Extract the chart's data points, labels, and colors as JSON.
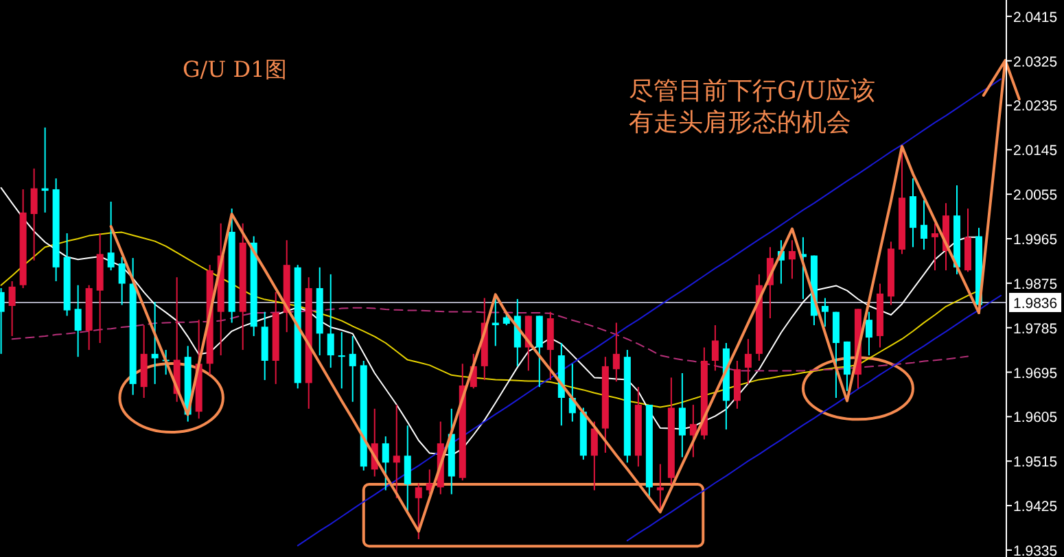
{
  "chart_data": {
    "type": "candlestick",
    "title": "G/U D1图",
    "annotations": [
      "尽管目前下行G/U应该",
      "有走头肩形态的机会"
    ],
    "categories": [
      null,
      null,
      null,
      null,
      null,
      null,
      null,
      null,
      null,
      null,
      null,
      null,
      null,
      null,
      null,
      null,
      null,
      null,
      null,
      null,
      null,
      null,
      null,
      null,
      null,
      null,
      null,
      null,
      null,
      null,
      null,
      null,
      null,
      null,
      null,
      null,
      null,
      null,
      null,
      null,
      null,
      null,
      null,
      null,
      null,
      null,
      null,
      null,
      null,
      null,
      null,
      null,
      null,
      null,
      null,
      null,
      null,
      null,
      null,
      null,
      null,
      null,
      null,
      null,
      null,
      null,
      null,
      null,
      null,
      null,
      null,
      null,
      null,
      null,
      null,
      null,
      null,
      null,
      null,
      null,
      null,
      null,
      null,
      null,
      null,
      null,
      null,
      null,
      null,
      null,
      null,
      null
    ],
    "ohlc": [
      [
        1.9857,
        1.9865,
        1.9732,
        1.9817
      ],
      [
        1.9829,
        1.9879,
        1.9768,
        1.9868
      ],
      [
        1.9871,
        2.0065,
        1.9865,
        2.0018
      ],
      [
        2.0015,
        2.0107,
        1.9921,
        2.0067
      ],
      [
        2.0067,
        2.019,
        2.0018,
        2.0062
      ],
      [
        2.0065,
        2.0087,
        1.9879,
        1.9907
      ],
      [
        1.9928,
        1.9976,
        1.9809,
        1.982
      ],
      [
        1.9823,
        1.9871,
        1.9726,
        1.9779
      ],
      [
        1.9779,
        1.9871,
        1.974,
        1.9865
      ],
      [
        1.986,
        1.9976,
        1.9754,
        1.9934
      ],
      [
        1.9937,
        2.004,
        1.9901,
        1.9907
      ],
      [
        1.9915,
        1.9928,
        1.9831,
        1.9874
      ],
      [
        1.9874,
        1.9926,
        1.9649,
        1.9671
      ],
      [
        1.9665,
        1.979,
        1.9643,
        1.9732
      ],
      [
        1.9732,
        1.9837,
        1.9671,
        1.9723
      ],
      [
        1.972,
        1.974,
        1.969,
        1.9718
      ],
      [
        1.9651,
        1.9887,
        1.9635,
        1.972
      ],
      [
        1.9726,
        1.9748,
        1.9595,
        1.9609
      ],
      [
        1.9615,
        1.9801,
        1.9601,
        1.9712
      ],
      [
        1.9712,
        1.9912,
        1.969,
        1.9901
      ],
      [
        1.9817,
        1.9996,
        1.9729,
        1.9931
      ],
      [
        1.9979,
        2.0026,
        1.9795,
        1.9817
      ],
      [
        1.9817,
        1.9996,
        1.974,
        1.9957
      ],
      [
        1.9957,
        1.997,
        1.9768,
        1.9787
      ],
      [
        1.9787,
        1.9817,
        1.9679,
        1.9718
      ],
      [
        1.9718,
        1.9857,
        1.9671,
        1.9815
      ],
      [
        1.9815,
        1.9962,
        1.9776,
        1.9912
      ],
      [
        1.9907,
        1.9912,
        1.9662,
        1.9673
      ],
      [
        1.9673,
        1.9887,
        1.9621,
        1.9865
      ],
      [
        1.9865,
        1.9907,
        1.9729,
        1.9773
      ],
      [
        1.9773,
        1.9893,
        1.9704,
        1.9729
      ],
      [
        1.9729,
        1.9776,
        1.9662,
        1.9726
      ],
      [
        1.9732,
        1.9768,
        1.9635,
        1.9707
      ],
      [
        1.9709,
        1.9718,
        1.9496,
        1.9504
      ],
      [
        1.9498,
        1.9621,
        1.9484,
        1.9551
      ],
      [
        1.9551,
        1.9565,
        1.9456,
        1.9512
      ],
      [
        1.9512,
        1.9629,
        1.944,
        1.9526
      ],
      [
        1.9526,
        1.9587,
        1.9412,
        1.9468
      ],
      [
        1.944,
        1.947,
        1.9357,
        1.9462
      ],
      [
        1.9456,
        1.9498,
        1.9448,
        1.947
      ],
      [
        1.9462,
        1.9595,
        1.9448,
        1.9551
      ],
      [
        1.957,
        1.9621,
        1.9448,
        1.9484
      ],
      [
        1.9481,
        1.9712,
        1.9476,
        1.9668
      ],
      [
        1.9665,
        1.9732,
        1.9662,
        1.9707
      ],
      [
        1.9707,
        1.9845,
        1.9679,
        1.9795
      ],
      [
        1.9795,
        1.9845,
        1.9748,
        1.979
      ],
      [
        1.9806,
        1.9817,
        1.979,
        1.9793
      ],
      [
        1.9809,
        1.9843,
        1.9707,
        1.9745
      ],
      [
        1.9745,
        1.9809,
        1.9698,
        1.9809
      ],
      [
        1.9809,
        1.9809,
        1.9665,
        1.9745
      ],
      [
        1.974,
        1.9817,
        1.9679,
        1.9804
      ],
      [
        1.9729,
        1.9754,
        1.9587,
        1.9643
      ],
      [
        1.9643,
        1.9712,
        1.9595,
        1.9612
      ],
      [
        1.9615,
        1.9623,
        1.9518,
        1.9526
      ],
      [
        1.9526,
        1.9595,
        1.9456,
        1.9581
      ],
      [
        1.9581,
        1.9726,
        1.9532,
        1.9707
      ],
      [
        1.9701,
        1.9795,
        1.9676,
        1.9732
      ],
      [
        1.9726,
        1.974,
        1.9512,
        1.9526
      ],
      [
        1.9526,
        1.9665,
        1.9504,
        1.9629
      ],
      [
        1.9629,
        1.9629,
        1.944,
        1.9462
      ],
      [
        1.9456,
        1.9509,
        1.9412,
        1.9462
      ],
      [
        1.9481,
        1.9684,
        1.9468,
        1.9623
      ],
      [
        1.9623,
        1.9693,
        1.9523,
        1.9567
      ],
      [
        1.9567,
        1.9629,
        1.9523,
        1.959
      ],
      [
        1.9567,
        1.9745,
        1.9559,
        1.9718
      ],
      [
        1.9718,
        1.979,
        1.9698,
        1.9759
      ],
      [
        1.9743,
        1.9754,
        1.9579,
        1.9637
      ],
      [
        1.9637,
        1.9718,
        1.9621,
        1.9701
      ],
      [
        1.9704,
        1.9762,
        1.9671,
        1.9732
      ],
      [
        1.9732,
        1.9893,
        1.9718,
        1.9871
      ],
      [
        1.9871,
        1.9948,
        1.9804,
        1.9926
      ],
      [
        1.994,
        1.9962,
        1.9874,
        1.9921
      ],
      [
        1.9923,
        1.9962,
        1.9884,
        1.994
      ],
      [
        1.9934,
        1.9968,
        1.9843,
        1.9928
      ],
      [
        1.9931,
        1.9931,
        1.979,
        1.9809
      ],
      [
        1.9829,
        1.9845,
        1.9787,
        1.9817
      ],
      [
        1.9817,
        1.9817,
        1.9643,
        1.9754
      ],
      [
        1.9757,
        1.9757,
        1.9657,
        1.969
      ],
      [
        1.969,
        1.9823,
        1.9662,
        1.9823
      ],
      [
        1.9801,
        1.9817,
        1.9729,
        1.9765
      ],
      [
        1.9768,
        1.9874,
        1.9745,
        1.9854
      ],
      [
        1.9848,
        1.9959,
        1.9831,
        1.9945
      ],
      [
        1.9943,
        2.0143,
        1.9934,
        2.0048
      ],
      [
        2.0051,
        2.0087,
        1.9948,
        1.9987
      ],
      [
        1.9993,
        2.0043,
        1.9943,
        1.9965
      ],
      [
        1.9968,
        1.9996,
        1.9901,
        1.9976
      ],
      [
        1.994,
        2.0037,
        1.9901,
        2.0012
      ],
      [
        2.0012,
        2.0073,
        1.9893,
        1.9907
      ],
      [
        1.9901,
        2.0026,
        1.9898,
        1.9968
      ],
      [
        1.997,
        1.9987,
        1.9823,
        1.9831
      ],
      null,
      null
    ],
    "colors": [
      "#00ffff",
      "#e0143c",
      "#e0143c",
      "#e0143c",
      "#00ffff",
      "#00ffff",
      "#00ffff",
      "#00ffff",
      "#e0143c",
      "#e0143c",
      "#00ffff",
      "#00ffff",
      "#00ffff",
      "#e0143c",
      "#00ffff",
      "#00ffff",
      "#e0143c",
      "#00ffff",
      "#e0143c",
      "#e0143c",
      "#e0143c",
      "#00ffff",
      "#e0143c",
      "#00ffff",
      "#00ffff",
      "#e0143c",
      "#e0143c",
      "#00ffff",
      "#e0143c",
      "#00ffff",
      "#00ffff",
      "#00ffff",
      "#00ffff",
      "#00ffff",
      "#e0143c",
      "#00ffff",
      "#e0143c",
      "#00ffff",
      "#e0143c",
      "#e0143c",
      "#e0143c",
      "#00ffff",
      "#e0143c",
      "#e0143c",
      "#e0143c",
      "#00ffff",
      "#00ffff",
      "#00ffff",
      "#e0143c",
      "#00ffff",
      "#e0143c",
      "#00ffff",
      "#00ffff",
      "#00ffff",
      "#e0143c",
      "#e0143c",
      "#e0143c",
      "#00ffff",
      "#e0143c",
      "#00ffff",
      "#e0143c",
      "#e0143c",
      "#00ffff",
      "#e0143c",
      "#e0143c",
      "#e0143c",
      "#00ffff",
      "#e0143c",
      "#e0143c",
      "#e0143c",
      "#e0143c",
      "#00ffff",
      "#e0143c",
      "#00ffff",
      "#00ffff",
      "#00ffff",
      "#00ffff",
      "#00ffff",
      "#e0143c",
      "#00ffff",
      "#e0143c",
      "#e0143c",
      "#e0143c",
      "#00ffff",
      "#00ffff",
      "#e0143c",
      "#e0143c",
      "#00ffff",
      "#e0143c",
      "#00ffff",
      null,
      null
    ],
    "series": [
      {
        "type": "line",
        "color": "#e6d200",
        "values": [
          1.9871,
          1.989,
          1.991,
          1.9929,
          1.9948,
          1.9954,
          1.996,
          1.9965,
          1.9971,
          1.9974,
          1.9977,
          1.9978,
          1.9972,
          1.9966,
          1.996,
          1.995,
          1.9937,
          1.9924,
          1.9911,
          1.9898,
          1.9886,
          1.9874,
          1.9861,
          1.9849,
          1.9842,
          1.9838,
          1.9833,
          1.9829,
          1.9822,
          1.9814,
          1.9807,
          1.9799,
          1.9788,
          1.9778,
          1.9767,
          1.9754,
          1.9737,
          1.972,
          1.9715,
          1.9709,
          1.9699,
          1.9689,
          1.9686,
          1.9684,
          1.9682,
          1.968,
          1.9679,
          1.9678,
          1.9677,
          1.9677,
          1.9675,
          1.967,
          1.9664,
          1.9659,
          1.9653,
          1.9648,
          1.9643,
          1.9637,
          1.9633,
          1.9628,
          1.9624,
          1.9628,
          1.9634,
          1.9641,
          1.9648,
          1.9654,
          1.9661,
          1.9668,
          1.9674,
          1.968,
          1.9683,
          1.9687,
          1.969,
          1.9694,
          1.9697,
          1.9701,
          1.9704,
          1.9706,
          1.971,
          1.9723,
          1.9736,
          1.9749,
          1.9762,
          1.9778,
          1.9795,
          1.9811,
          1.9828,
          1.9839,
          1.985,
          1.986,
          null,
          null
        ]
      },
      {
        "type": "line",
        "color": "#ffffff",
        "values": [
          2.0068,
          2.0037,
          2.0007,
          1.998,
          1.9958,
          1.9943,
          1.9928,
          1.9923,
          1.9926,
          1.9929,
          1.9919,
          1.9909,
          1.9885,
          1.9857,
          1.9832,
          1.9816,
          1.9799,
          1.9767,
          1.9731,
          1.9735,
          1.9756,
          1.9778,
          1.9788,
          1.9796,
          1.9804,
          1.9811,
          1.9819,
          1.9826,
          1.9818,
          1.9799,
          1.9786,
          1.978,
          1.9773,
          1.9733,
          1.9693,
          1.9661,
          1.9629,
          1.9594,
          1.9557,
          1.9531,
          1.9529,
          1.9527,
          1.954,
          1.9568,
          1.9598,
          1.9633,
          1.9669,
          1.9705,
          1.9737,
          1.975,
          1.9764,
          1.9752,
          1.973,
          1.9707,
          1.9684,
          1.9683,
          1.9681,
          1.968,
          1.9656,
          1.9617,
          1.9582,
          1.9581,
          1.958,
          1.9585,
          1.9596,
          1.9606,
          1.962,
          1.9646,
          1.9672,
          1.9701,
          1.9738,
          1.9775,
          1.9807,
          1.9837,
          1.986,
          1.9865,
          1.987,
          1.986,
          1.9843,
          1.9829,
          1.982,
          1.9811,
          1.9833,
          1.9863,
          1.9893,
          1.9923,
          1.9942,
          1.9961,
          1.9968,
          1.9968,
          null,
          null
        ]
      },
      {
        "type": "line",
        "color": "#b8307a",
        "line_style": "dashed",
        "values": [
          null,
          1.9762,
          1.9764,
          1.9766,
          1.9768,
          1.9771,
          1.9773,
          1.9775,
          1.9778,
          1.9781,
          1.9783,
          1.9786,
          1.9788,
          1.9791,
          1.9794,
          1.9795,
          1.9796,
          1.9796,
          1.9797,
          1.9797,
          1.9799,
          1.9804,
          1.981,
          1.9815,
          1.9815,
          1.9816,
          1.9817,
          1.9817,
          1.9819,
          1.982,
          1.9822,
          1.9824,
          1.9825,
          1.9825,
          1.9824,
          1.9822,
          1.9821,
          1.982,
          1.982,
          1.9819,
          1.9818,
          1.9817,
          1.9817,
          1.9817,
          1.9816,
          1.9816,
          1.9816,
          1.9815,
          1.9815,
          1.9815,
          1.9814,
          1.9807,
          1.98,
          1.9794,
          1.9787,
          1.9779,
          1.9771,
          1.9762,
          1.9752,
          1.9741,
          1.9729,
          1.9724,
          1.972,
          1.9717,
          1.9713,
          1.9708,
          1.9703,
          1.9698,
          1.9698,
          1.9698,
          1.9698,
          1.9698,
          1.9698,
          1.9698,
          1.9699,
          1.97,
          1.9701,
          1.9703,
          1.9704,
          1.9706,
          1.9708,
          1.971,
          1.9712,
          1.9714,
          1.9717,
          1.9719,
          1.9721,
          1.9724,
          1.9727,
          null,
          null,
          null
        ]
      },
      {
        "type": "line",
        "color": "#f58a50",
        "values": [
          null,
          null,
          null,
          null,
          null,
          null,
          null,
          null,
          null,
          null,
          1.999,
          1.9936,
          1.9881,
          1.9827,
          1.9772,
          1.9718,
          1.9663,
          1.9609,
          1.9711,
          1.9812,
          1.9914,
          2.0015,
          1.9977,
          1.9939,
          1.9902,
          1.9864,
          1.9826,
          1.9788,
          1.9751,
          1.9713,
          1.9675,
          1.9637,
          1.96,
          1.9562,
          1.9524,
          1.9486,
          1.9449,
          1.9411,
          1.9373,
          1.944,
          1.9507,
          1.9574,
          1.9642,
          1.9709,
          1.9776,
          1.9852,
          1.9814,
          1.9786,
          1.9757,
          1.9728,
          1.97,
          1.9671,
          1.9642,
          1.9613,
          1.9585,
          1.9556,
          1.9527,
          1.9499,
          1.947,
          1.9441,
          1.9412,
          1.946,
          1.9508,
          1.9555,
          1.9603,
          1.9651,
          1.9699,
          1.9746,
          1.9794,
          1.9842,
          1.989,
          1.9937,
          1.9985,
          1.9915,
          1.9845,
          1.9774,
          1.9704,
          1.9637,
          1.9738,
          1.9839,
          1.9941,
          2.0042,
          2.0152,
          2.0096,
          2.0049,
          2.0002,
          1.9955,
          1.9909,
          1.9862,
          1.9815,
          null,
          null
        ]
      },
      {
        "type": "line",
        "color": "#1a1ad8",
        "values": [
          null,
          null,
          null,
          null,
          null,
          null,
          null,
          null,
          null,
          null,
          null,
          null,
          null,
          null,
          null,
          null,
          null,
          null,
          null,
          null,
          null,
          null,
          null,
          null,
          null,
          null,
          null,
          1.9344,
          1.9359,
          1.9374,
          1.9388,
          1.9403,
          1.9418,
          1.9433,
          1.9447,
          1.9462,
          1.9477,
          1.9492,
          1.9506,
          1.9521,
          1.9536,
          1.9551,
          1.9565,
          1.958,
          1.9595,
          1.961,
          1.9624,
          1.9639,
          1.9654,
          1.9669,
          1.9683,
          1.9698,
          1.9713,
          1.9728,
          1.9742,
          1.9757,
          1.9772,
          1.9787,
          1.9801,
          1.9816,
          1.9831,
          1.9846,
          1.986,
          1.9875,
          1.989,
          1.9905,
          1.9919,
          1.9934,
          1.9949,
          1.9964,
          1.9978,
          1.9993,
          2.0008,
          2.0023,
          2.0037,
          2.0052,
          2.0067,
          2.0082,
          2.0096,
          2.0111,
          2.0126,
          2.0141,
          2.0155,
          2.017,
          2.0185,
          2.02,
          2.0214,
          2.0229,
          2.0244,
          2.0259,
          2.0273,
          2.0288
        ]
      },
      {
        "type": "line",
        "color": "#1a1ad8",
        "values": [
          null,
          null,
          null,
          null,
          null,
          null,
          null,
          null,
          null,
          null,
          null,
          null,
          null,
          null,
          null,
          null,
          null,
          null,
          null,
          null,
          null,
          null,
          null,
          null,
          null,
          null,
          null,
          null,
          null,
          null,
          null,
          null,
          null,
          null,
          null,
          null,
          null,
          null,
          null,
          null,
          null,
          null,
          null,
          null,
          null,
          null,
          null,
          null,
          null,
          null,
          null,
          null,
          null,
          null,
          null,
          null,
          null,
          1.9354,
          1.9369,
          1.9383,
          1.9398,
          1.9412,
          1.9427,
          1.9442,
          1.9456,
          1.9471,
          1.9485,
          1.95,
          1.9515,
          1.9529,
          1.9544,
          1.9558,
          1.9573,
          1.9588,
          1.9602,
          1.9617,
          1.9631,
          1.9646,
          1.9661,
          1.9675,
          1.969,
          1.9704,
          1.9719,
          1.9734,
          1.9748,
          1.9763,
          1.9777,
          1.9792,
          1.9807,
          1.9821,
          1.9836,
          1.985
        ]
      }
    ],
    "ref_lines": [
      {
        "axis": "y",
        "value": 1.9836,
        "label": "1.9836",
        "color": "#a8a8b8"
      }
    ],
    "ylim": [
      1.9321,
      2.0448
    ],
    "yticks": [
      1.9335,
      1.9425,
      1.9515,
      1.9605,
      1.9695,
      1.9785,
      1.9875,
      1.9965,
      2.0055,
      2.0145,
      2.0235,
      2.0325,
      2.0415
    ]
  }
}
